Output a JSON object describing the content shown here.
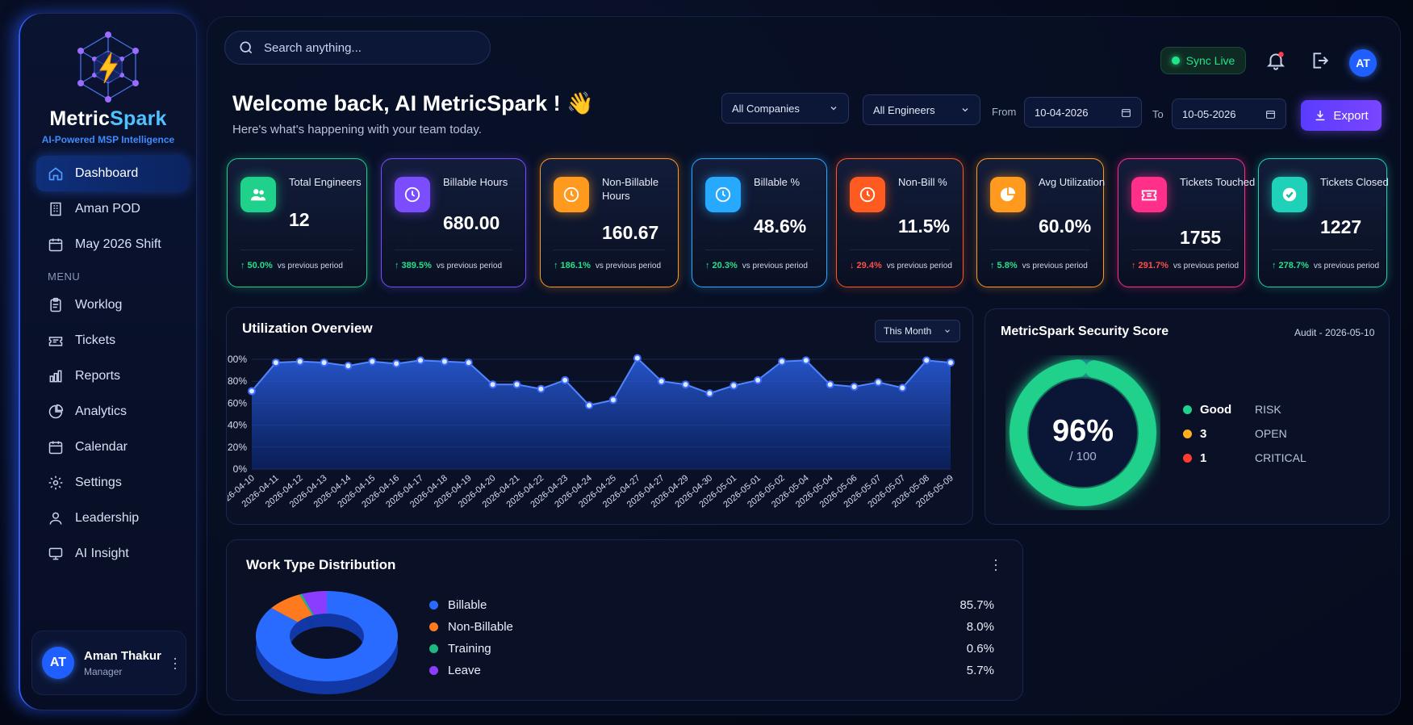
{
  "colors": {
    "accent": "#2a6bff",
    "success": "#27e08a",
    "danger": "#ff4d4d",
    "export": "#6a40ff"
  },
  "sidebar": {
    "brand_part1": "Metric",
    "brand_part2": "Spark",
    "tagline": "AI-Powered MSP Intelligence",
    "items_top": [
      {
        "label": "Dashboard",
        "icon": "home-icon",
        "active": true
      },
      {
        "label": "Aman POD",
        "icon": "building-icon"
      },
      {
        "label": "May 2026 Shift",
        "icon": "calendar-icon"
      }
    ],
    "menu_label": "MENU",
    "items_menu": [
      {
        "label": "Worklog",
        "icon": "clipboard-icon"
      },
      {
        "label": "Tickets",
        "icon": "ticket-icon"
      },
      {
        "label": "Reports",
        "icon": "bar-chart-icon"
      },
      {
        "label": "Analytics",
        "icon": "pie-chart-icon"
      },
      {
        "label": "Calendar",
        "icon": "calendar-icon"
      },
      {
        "label": "Settings",
        "icon": "gear-icon"
      },
      {
        "label": "Leadership",
        "icon": "user-icon"
      },
      {
        "label": "AI Insight",
        "icon": "monitor-icon"
      }
    ],
    "user": {
      "initials": "AT",
      "name": "Aman Thakur",
      "role": "Manager"
    }
  },
  "header": {
    "search_placeholder": "Search anything...",
    "sync_label": "Sync Live",
    "avatar_initials": "AT",
    "welcome": "Welcome back, AI MetricSpark ! 👋",
    "subtitle": "Here's what's happening with your team today.",
    "company_filter": "All Companies",
    "engineer_filter": "All Engineers",
    "from_label": "From",
    "from_date": "10-04-2026",
    "to_label": "To",
    "to_date": "10-05-2026",
    "export_label": "Export"
  },
  "stats": [
    {
      "label": "Total Engineers",
      "value": "12",
      "delta": "↑ 50.0%",
      "dir": "up",
      "vs": "vs previous period",
      "color": "#1fd18a",
      "icon": "users-icon"
    },
    {
      "label": "Billable Hours",
      "value": "680.00",
      "delta": "↑ 389.5%",
      "dir": "up",
      "vs": "vs previous period",
      "color": "#7b4dff",
      "icon": "clock-icon"
    },
    {
      "label": "Non-Billable Hours",
      "value": "160.67",
      "delta": "↑ 186.1%",
      "dir": "up",
      "vs": "vs previous period",
      "color": "#ff9a1f",
      "icon": "clock-icon"
    },
    {
      "label": "Billable %",
      "value": "48.6%",
      "delta": "↑ 20.3%",
      "dir": "up",
      "vs": "vs previous period",
      "color": "#27a9ff",
      "icon": "clock-icon"
    },
    {
      "label": "Non-Bill %",
      "value": "11.5%",
      "delta": "↓ 29.4%",
      "dir": "down",
      "vs": "vs previous period",
      "color": "#ff5a1f",
      "icon": "clock-icon"
    },
    {
      "label": "Avg Utilization",
      "value": "60.0%",
      "delta": "↑ 5.8%",
      "dir": "up",
      "vs": "vs previous period",
      "color": "#ff9a1f",
      "icon": "pie-icon"
    },
    {
      "label": "Tickets Touched",
      "value": "1755",
      "delta": "↑ 291.7%",
      "dir": "down",
      "vs": "vs previous period",
      "color": "#ff2f8a",
      "icon": "ticket-icon"
    },
    {
      "label": "Tickets Closed",
      "value": "1227",
      "delta": "↑ 278.7%",
      "dir": "up",
      "vs": "vs previous period",
      "color": "#1fd1b8",
      "icon": "check-icon"
    }
  ],
  "utilization": {
    "title": "Utilization Overview",
    "period": "This Month"
  },
  "chart_data": {
    "type": "area",
    "title": "Utilization Overview",
    "categories": [
      "2026-04-10",
      "2026-04-11",
      "2026-04-12",
      "2026-04-13",
      "2026-04-14",
      "2026-04-15",
      "2026-04-16",
      "2026-04-17",
      "2026-04-18",
      "2026-04-19",
      "2026-04-20",
      "2026-04-21",
      "2026-04-22",
      "2026-04-23",
      "2026-04-24",
      "2026-04-25",
      "2026-04-27",
      "2026-04-27",
      "2026-04-29",
      "2026-04-30",
      "2026-05-01",
      "2026-05-01",
      "2026-05-02",
      "2026-05-04",
      "2026-05-04",
      "2026-05-06",
      "2026-05-07",
      "2026-05-07",
      "2026-05-08",
      "2026-05-09"
    ],
    "values": [
      71,
      97,
      98,
      97,
      94,
      98,
      96,
      99,
      98,
      97,
      77,
      77,
      73,
      81,
      58,
      63,
      101,
      80,
      77,
      69,
      76,
      81,
      98,
      99,
      77,
      75,
      79,
      74,
      99,
      97
    ],
    "ylim": [
      0,
      100
    ],
    "yticks": [
      "0%",
      "20%",
      "40%",
      "60%",
      "80%",
      "100%"
    ],
    "grid": true,
    "color": "#2f6bff"
  },
  "security": {
    "title": "MetricSpark Security Score",
    "audit": "Audit - 2026-05-10",
    "score": "96%",
    "score_value": 96,
    "out_of": "/ 100",
    "legend": [
      {
        "value": "Good",
        "label": "RISK",
        "color": "#1fd18a"
      },
      {
        "value": "3",
        "label": "OPEN",
        "color": "#ffae1f"
      },
      {
        "value": "1",
        "label": "CRITICAL",
        "color": "#ff3b2f"
      }
    ]
  },
  "distribution": {
    "title": "Work Type Distribution",
    "items": [
      {
        "label": "Billable",
        "pct": "85.7%",
        "value": 85.7,
        "color": "#2a6bff"
      },
      {
        "label": "Non-Billable",
        "pct": "8.0%",
        "value": 8.0,
        "color": "#ff7a1f"
      },
      {
        "label": "Training",
        "pct": "0.6%",
        "value": 0.6,
        "color": "#1fb880"
      },
      {
        "label": "Leave",
        "pct": "5.7%",
        "value": 5.7,
        "color": "#8a3cff"
      }
    ]
  }
}
